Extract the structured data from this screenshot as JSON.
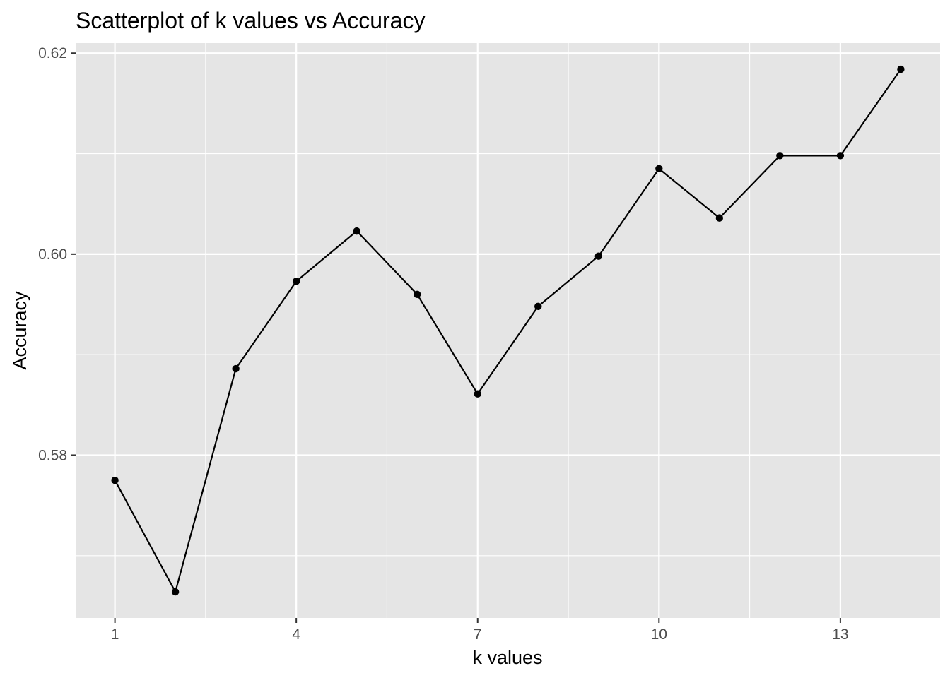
{
  "chart_data": {
    "type": "line",
    "title": "Scatterplot of k values vs Accuracy",
    "xlabel": "k values",
    "ylabel": "Accuracy",
    "x": [
      1,
      2,
      3,
      4,
      5,
      6,
      7,
      8,
      9,
      10,
      11,
      12,
      13,
      14
    ],
    "y": [
      0.5775,
      0.5664,
      0.5886,
      0.5973,
      0.6023,
      0.596,
      0.5861,
      0.5948,
      0.5998,
      0.6085,
      0.6036,
      0.6098,
      0.6098,
      0.6184
    ],
    "xlim": [
      0.35,
      14.65
    ],
    "ylim": [
      0.5638,
      0.621
    ],
    "x_ticks": [
      1,
      4,
      7,
      10,
      13
    ],
    "x_tick_labels": [
      "1",
      "4",
      "7",
      "10",
      "13"
    ],
    "y_ticks": [
      0.58,
      0.6,
      0.62
    ],
    "y_tick_labels": [
      "0.58",
      "0.60",
      "0.62"
    ],
    "grid": true,
    "markers": true,
    "colors": {
      "panel_background": "#e5e5e5",
      "grid": "#ffffff",
      "line": "#000000",
      "point": "#000000",
      "tick_text": "#4d4d4d",
      "tick_mark": "#333333"
    }
  }
}
